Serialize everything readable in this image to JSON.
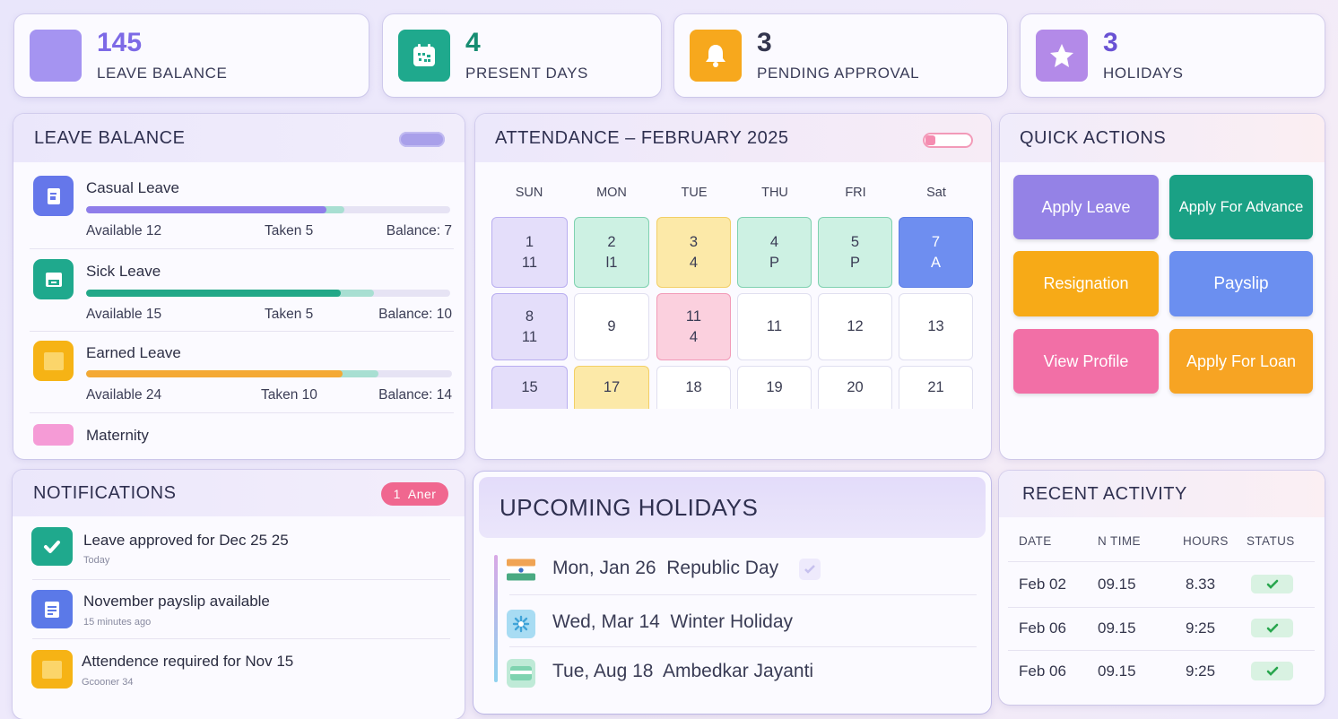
{
  "stats": [
    {
      "value": "145",
      "label": "LEAVE BALANCE",
      "color": "#a594f1",
      "icon": "leave-square-icon"
    },
    {
      "value": "4",
      "label": "PRESENT DAYS",
      "color": "#1fa98d",
      "icon": "calendar-icon"
    },
    {
      "value": "3",
      "label": "PENDING APPROVAL",
      "color": "#f7a81d",
      "icon": "bell-icon"
    },
    {
      "value": "3",
      "label": "HOLIDAYS",
      "color": "#b38ae8",
      "icon": "star-icon"
    }
  ],
  "leave_balance": {
    "title": "LEAVE BALANCE",
    "items": [
      {
        "name": "Casual Leave",
        "available": "Available  12",
        "taken": "Taken  5",
        "balance": "Balance: 7",
        "fill": 0.66,
        "extra": 0.05,
        "color": "#8f7dea",
        "icon": "document-icon"
      },
      {
        "name": "Sick Leave",
        "available": "Available  15",
        "taken": "Taken  5",
        "balance": "Balance: 10",
        "fill": 0.7,
        "extra": 0.09,
        "color": "#22a888",
        "icon": "inbox-icon"
      },
      {
        "name": "Earned Leave",
        "available": "Available  24",
        "taken": "Taken  10",
        "balance": "Balance: 14",
        "fill": 0.7,
        "extra": 0.1,
        "color": "#f4a934",
        "icon": "square-icon"
      },
      {
        "name": "Maternity",
        "color": "#f59bd6",
        "icon": "pink-square-icon"
      }
    ]
  },
  "attendance": {
    "title": "ATTENDANCE – FEBRUARY 2025",
    "days": [
      "SUN",
      "MON",
      "TUE",
      "THU",
      "FRI",
      "Sat"
    ],
    "rows": [
      [
        {
          "d": "1",
          "s": "11",
          "c": "purple"
        },
        {
          "d": "2",
          "s": "l1",
          "c": "green"
        },
        {
          "d": "3",
          "s": "4",
          "c": "yellow"
        },
        {
          "d": "4",
          "s": "P",
          "c": "green"
        },
        {
          "d": "5",
          "s": "P",
          "c": "green"
        },
        {
          "d": "7",
          "s": "A",
          "c": "blue"
        }
      ],
      [
        {
          "d": "8",
          "s": "11",
          "c": "purple"
        },
        {
          "d": "9",
          "s": "",
          "c": "white"
        },
        {
          "d": "11",
          "s": "4",
          "c": "pink"
        },
        {
          "d": "11",
          "s": "",
          "c": "white"
        },
        {
          "d": "12",
          "s": "",
          "c": "white"
        },
        {
          "d": "13",
          "s": "",
          "c": "white"
        }
      ],
      [
        {
          "d": "15",
          "s": "",
          "c": "purple"
        },
        {
          "d": "17",
          "s": "",
          "c": "yellow"
        },
        {
          "d": "18",
          "s": "",
          "c": "white"
        },
        {
          "d": "19",
          "s": "",
          "c": "white"
        },
        {
          "d": "20",
          "s": "",
          "c": "white"
        },
        {
          "d": "21",
          "s": "",
          "c": "white"
        }
      ]
    ]
  },
  "quick_actions": {
    "title": "QUICK ACTIONS",
    "buttons": [
      {
        "label": "Apply Leave",
        "color": "#9482e6"
      },
      {
        "label": "Apply For Advance",
        "color": "#1aa185"
      },
      {
        "label": "Resignation",
        "color": "#f7aa17"
      },
      {
        "label": "Payslip",
        "color": "#6b8ff0"
      },
      {
        "label": "View Profile",
        "color": "#f26fa6"
      },
      {
        "label": "Apply For Loan",
        "color": "#f7a423"
      }
    ]
  },
  "notifications": {
    "title": "NOTIFICATIONS",
    "badge": "1  Aner",
    "items": [
      {
        "title": "Leave approved for Dec 25 25",
        "sub": "Today",
        "color": "#1fa98d",
        "icon": "check-icon"
      },
      {
        "title": "November payslip available",
        "sub": "15 minutes ago",
        "color": "#5b79e8",
        "icon": "document-icon"
      },
      {
        "title": "Attendence required for Nov 15",
        "sub": "Gcooner 34",
        "color": "#f6b315",
        "icon": "square-icon"
      }
    ]
  },
  "holidays": {
    "title": "UPCOMING HOLIDAYS",
    "items": [
      {
        "text": "Mon, Jan 26  Republic Day",
        "icon": "flag-icon"
      },
      {
        "text": "Wed, Mar 14  Winter Holiday",
        "icon": "snowflake-icon"
      },
      {
        "text": "Tue, Aug 18  Ambedkar Jayanti",
        "icon": "card-icon"
      }
    ]
  },
  "activity": {
    "title": "RECENT ACTIVITY",
    "headers": [
      "DATE",
      "N TIME",
      "HOURS",
      "STATUS"
    ],
    "rows": [
      [
        "Feb 02",
        "09.15",
        "8.33"
      ],
      [
        "Feb 06",
        "09.15",
        "9:25"
      ],
      [
        "Feb 06",
        "09.15",
        "9:25"
      ]
    ]
  }
}
